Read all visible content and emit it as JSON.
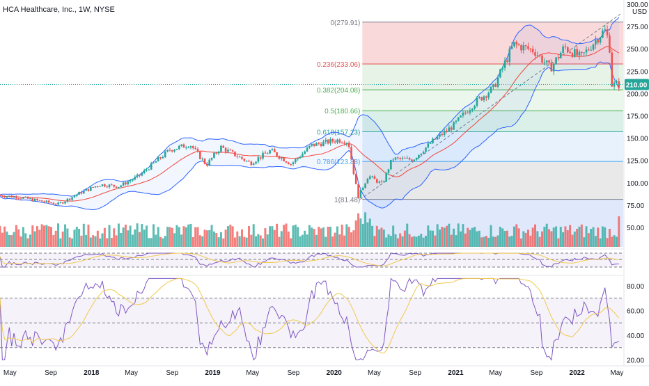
{
  "title": "HCA Healthcare, Inc., 1W, NYSE",
  "currency": "USD",
  "last_price": "210.00",
  "chart_data": {
    "type": "candlestick",
    "price_axis": {
      "ylim": [
        36,
        300
      ],
      "ticks": [
        "300.00",
        "275.00",
        "250.00",
        "225.00",
        "200.00",
        "175.00",
        "150.00",
        "125.00",
        "100.00",
        "75.00",
        "50.00"
      ]
    },
    "time_axis": {
      "labels": [
        "May",
        "Sep",
        "2018",
        "May",
        "Sep",
        "2019",
        "May",
        "Sep",
        "2020",
        "May",
        "Sep",
        "2021",
        "May",
        "Sep",
        "2022",
        "May"
      ]
    },
    "price_path": [
      [
        "2017-04-01",
        86
      ],
      [
        "2017-06-01",
        84
      ],
      [
        "2017-08-01",
        80
      ],
      [
        "2017-10-01",
        76
      ],
      [
        "2017-12-01",
        88
      ],
      [
        "2018-02-01",
        98
      ],
      [
        "2018-04-01",
        96
      ],
      [
        "2018-06-01",
        108
      ],
      [
        "2018-09-01",
        137
      ],
      [
        "2018-11-01",
        143
      ],
      [
        "2018-12-20",
        120
      ],
      [
        "2019-02-01",
        140
      ],
      [
        "2019-05-01",
        122
      ],
      [
        "2019-07-01",
        136
      ],
      [
        "2019-09-01",
        121
      ],
      [
        "2019-11-01",
        142
      ],
      [
        "2020-01-20",
        148
      ],
      [
        "2020-02-20",
        146
      ],
      [
        "2020-03-20",
        84
      ],
      [
        "2020-04-20",
        108
      ],
      [
        "2020-06-01",
        98
      ],
      [
        "2020-07-01",
        127
      ],
      [
        "2020-09-01",
        126
      ],
      [
        "2020-11-01",
        147
      ],
      [
        "2021-01-01",
        164
      ],
      [
        "2021-03-01",
        188
      ],
      [
        "2021-05-01",
        206
      ],
      [
        "2021-07-01",
        255
      ],
      [
        "2021-09-01",
        248
      ],
      [
        "2021-10-20",
        228
      ],
      [
        "2021-12-01",
        252
      ],
      [
        "2022-01-20",
        240
      ],
      [
        "2022-03-10",
        262
      ],
      [
        "2022-04-01",
        271
      ],
      [
        "2022-04-15",
        258
      ],
      [
        "2022-04-22",
        210
      ]
    ],
    "fibonacci": {
      "levels": [
        {
          "label": "0(279.91)",
          "value": 279.91,
          "color": "#787b86",
          "fill": "#f9d2d4"
        },
        {
          "label": "0.236(233.06)",
          "value": 233.06,
          "color": "#e05252",
          "fill": "#e3f1e2"
        },
        {
          "label": "0.382(204.08)",
          "value": 204.08,
          "color": "#4caf50",
          "fill": "#e8f5e9"
        },
        {
          "label": "0.5(180.66)",
          "value": 180.66,
          "color": "#4caf50",
          "fill": "#d5ede4"
        },
        {
          "label": "0.618(157.23)",
          "value": 157.23,
          "color": "#26a69a",
          "fill": "#e3f0fb"
        },
        {
          "label": "0.786(123.88)",
          "value": 123.88,
          "color": "#42a5f5",
          "fill": "#e5e5e5"
        },
        {
          "label": "1(81.48)",
          "value": 81.48,
          "color": "#787b86",
          "fill": "#dbe5fb"
        }
      ]
    },
    "rsi_axis": {
      "ylim": [
        15,
        90
      ],
      "ticks": [
        "80.00",
        "60.00",
        "40.00",
        "20.00"
      ],
      "bands": [
        70,
        50,
        30
      ]
    },
    "colors": {
      "up": "#26a69a",
      "down": "#ef5350",
      "bollinger": "#2962ff",
      "basis": "#f44336",
      "rsi": "#7e57c2",
      "rsi_ma": "#f0c94d",
      "last": "#26a69a"
    }
  }
}
